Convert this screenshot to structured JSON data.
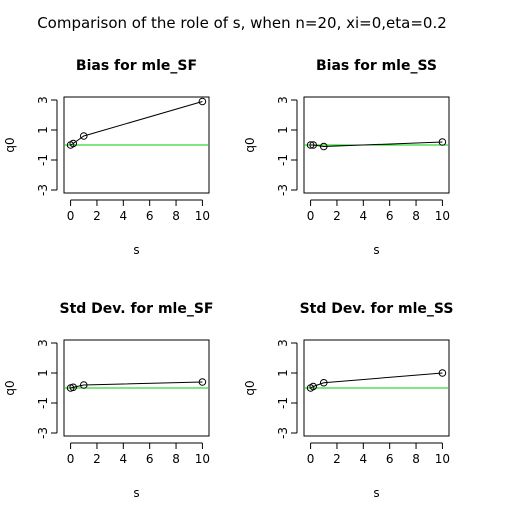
{
  "main_title": "Comparison of the role of s, when n=20, xi=0,eta=0.2",
  "colors": {
    "reference_line": "#00cc00",
    "points": "#000000"
  },
  "chart_data": [
    {
      "type": "line",
      "title": "Bias for mle_SF",
      "xlabel": "s",
      "ylabel": "q0",
      "xlim": [
        -0.5,
        10.5
      ],
      "ylim": [
        -3.2,
        3.2
      ],
      "xticks": [
        0,
        2,
        4,
        6,
        8,
        10
      ],
      "yticks": [
        -3,
        -1,
        1,
        3
      ],
      "x": [
        0,
        0.2,
        1,
        10
      ],
      "y": [
        0.0,
        0.1,
        0.6,
        2.9
      ],
      "reference_y": 0,
      "grid": false
    },
    {
      "type": "line",
      "title": "Bias for mle_SS",
      "xlabel": "s",
      "ylabel": "q0",
      "xlim": [
        -0.5,
        10.5
      ],
      "ylim": [
        -3.2,
        3.2
      ],
      "xticks": [
        0,
        2,
        4,
        6,
        8,
        10
      ],
      "yticks": [
        -3,
        -1,
        1,
        3
      ],
      "x": [
        0,
        0.2,
        1,
        10
      ],
      "y": [
        0.0,
        0.0,
        -0.1,
        0.2
      ],
      "reference_y": 0,
      "grid": false
    },
    {
      "type": "line",
      "title": "Std Dev. for mle_SF",
      "xlabel": "s",
      "ylabel": "q0",
      "xlim": [
        -0.5,
        10.5
      ],
      "ylim": [
        -3.2,
        3.2
      ],
      "xticks": [
        0,
        2,
        4,
        6,
        8,
        10
      ],
      "yticks": [
        -3,
        -1,
        1,
        3
      ],
      "x": [
        0,
        0.2,
        1,
        10
      ],
      "y": [
        0.0,
        0.05,
        0.2,
        0.4
      ],
      "reference_y": 0,
      "grid": false
    },
    {
      "type": "line",
      "title": "Std Dev. for mle_SS",
      "xlabel": "s",
      "ylabel": "q0",
      "xlim": [
        -0.5,
        10.5
      ],
      "ylim": [
        -3.2,
        3.2
      ],
      "xticks": [
        0,
        2,
        4,
        6,
        8,
        10
      ],
      "yticks": [
        -3,
        -1,
        1,
        3
      ],
      "x": [
        0,
        0.2,
        1,
        10
      ],
      "y": [
        0.0,
        0.1,
        0.35,
        1.0
      ],
      "reference_y": 0,
      "grid": false
    }
  ]
}
